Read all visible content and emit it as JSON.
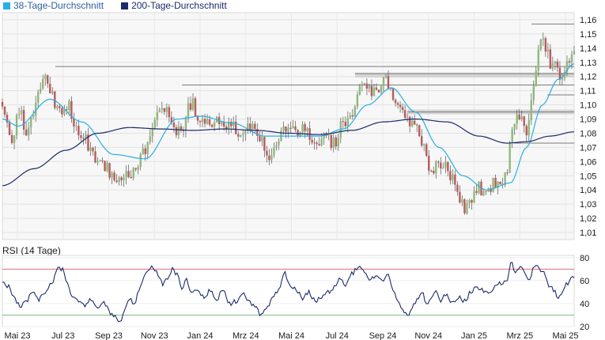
{
  "legend": {
    "ma38_label": "38-Tage-Durchschnitt",
    "ma200_label": "200-Tage-Durchschnitt"
  },
  "colors": {
    "ma38": "#29aee6",
    "ma200": "#1b2a6b",
    "candle_up": "#8fb87a",
    "candle_down": "#b85a5a",
    "candle_wick": "#555555",
    "rsi_line": "#1b2a6b",
    "rsi_upper": "#e07070",
    "rsi_lower": "#80c080"
  },
  "rsi_title": "RSI (14 Tage)",
  "chart_data": [
    {
      "type": "candlestick",
      "title": "",
      "y_ticks": [
        "1,16",
        "1,15",
        "1,14",
        "1,13",
        "1,12",
        "1,11",
        "1,10",
        "1,09",
        "1,08",
        "1,07",
        "1,06",
        "1,05",
        "1,04",
        "1,03",
        "1,02",
        "1,01"
      ],
      "ylim": [
        1.005,
        1.165
      ],
      "x_ticks": [
        "Mai 23",
        "Jul 23",
        "Sep 23",
        "Nov 23",
        "Jan 24",
        "Mrz 24",
        "Mai 24",
        "Jul 24",
        "Sep 24",
        "Nov 24",
        "Jan 25",
        "Mrz 25",
        "Mai 25"
      ],
      "grid": true,
      "close_anchors": [
        [
          0,
          1.102
        ],
        [
          6,
          1.085
        ],
        [
          12,
          1.072
        ],
        [
          18,
          1.088
        ],
        [
          24,
          1.092
        ],
        [
          30,
          1.08
        ],
        [
          36,
          1.09
        ],
        [
          42,
          1.1
        ],
        [
          48,
          1.112
        ],
        [
          54,
          1.125
        ],
        [
          60,
          1.108
        ],
        [
          66,
          1.102
        ],
        [
          72,
          1.098
        ],
        [
          78,
          1.092
        ],
        [
          84,
          1.1
        ],
        [
          90,
          1.088
        ],
        [
          96,
          1.08
        ],
        [
          102,
          1.078
        ],
        [
          108,
          1.072
        ],
        [
          114,
          1.066
        ],
        [
          120,
          1.062
        ],
        [
          126,
          1.058
        ],
        [
          132,
          1.055
        ],
        [
          138,
          1.052
        ],
        [
          144,
          1.05
        ],
        [
          150,
          1.048
        ],
        [
          156,
          1.055
        ],
        [
          162,
          1.052
        ],
        [
          168,
          1.058
        ],
        [
          174,
          1.062
        ],
        [
          180,
          1.068
        ],
        [
          186,
          1.075
        ],
        [
          192,
          1.088
        ],
        [
          198,
          1.096
        ],
        [
          204,
          1.099
        ],
        [
          210,
          1.095
        ],
        [
          216,
          1.085
        ],
        [
          222,
          1.08
        ],
        [
          228,
          1.082
        ],
        [
          234,
          1.098
        ],
        [
          240,
          1.1
        ],
        [
          246,
          1.092
        ],
        [
          252,
          1.09
        ],
        [
          258,
          1.085
        ],
        [
          264,
          1.088
        ],
        [
          270,
          1.092
        ],
        [
          276,
          1.085
        ],
        [
          282,
          1.083
        ],
        [
          288,
          1.087
        ],
        [
          294,
          1.082
        ],
        [
          300,
          1.078
        ],
        [
          306,
          1.08
        ],
        [
          312,
          1.085
        ],
        [
          318,
          1.08
        ],
        [
          324,
          1.076
        ],
        [
          330,
          1.07
        ],
        [
          336,
          1.065
        ],
        [
          342,
          1.072
        ],
        [
          348,
          1.078
        ],
        [
          354,
          1.082
        ],
        [
          360,
          1.086
        ],
        [
          366,
          1.08
        ],
        [
          372,
          1.078
        ],
        [
          378,
          1.084
        ],
        [
          384,
          1.082
        ],
        [
          390,
          1.076
        ],
        [
          396,
          1.07
        ],
        [
          402,
          1.074
        ],
        [
          408,
          1.08
        ],
        [
          414,
          1.072
        ],
        [
          420,
          1.075
        ],
        [
          426,
          1.085
        ],
        [
          432,
          1.082
        ],
        [
          438,
          1.09
        ],
        [
          444,
          1.102
        ],
        [
          450,
          1.112
        ],
        [
          456,
          1.116
        ],
        [
          462,
          1.112
        ],
        [
          468,
          1.108
        ],
        [
          474,
          1.112
        ],
        [
          480,
          1.118
        ],
        [
          486,
          1.114
        ],
        [
          492,
          1.106
        ],
        [
          498,
          1.098
        ],
        [
          504,
          1.092
        ],
        [
          510,
          1.088
        ],
        [
          516,
          1.085
        ],
        [
          522,
          1.082
        ],
        [
          528,
          1.076
        ],
        [
          534,
          1.065
        ],
        [
          540,
          1.052
        ],
        [
          546,
          1.06
        ],
        [
          552,
          1.058
        ],
        [
          558,
          1.055
        ],
        [
          564,
          1.05
        ],
        [
          570,
          1.042
        ],
        [
          576,
          1.035
        ],
        [
          582,
          1.028
        ],
        [
          588,
          1.03
        ],
        [
          594,
          1.038
        ],
        [
          600,
          1.042
        ],
        [
          606,
          1.035
        ],
        [
          612,
          1.038
        ],
        [
          618,
          1.045
        ],
        [
          624,
          1.042
        ],
        [
          630,
          1.04
        ],
        [
          636,
          1.055
        ],
        [
          642,
          1.082
        ],
        [
          648,
          1.092
        ],
        [
          654,
          1.088
        ],
        [
          660,
          1.082
        ],
        [
          666,
          1.1
        ],
        [
          672,
          1.128
        ],
        [
          678,
          1.148
        ],
        [
          684,
          1.14
        ],
        [
          690,
          1.13
        ],
        [
          696,
          1.128
        ],
        [
          702,
          1.118
        ],
        [
          708,
          1.122
        ],
        [
          714,
          1.132
        ],
        [
          720,
          1.14
        ]
      ],
      "series": [
        {
          "name": "38-Tage-Durchschnitt",
          "anchors": [
            [
              0,
              1.09
            ],
            [
              20,
              1.085
            ],
            [
              60,
              1.104
            ],
            [
              100,
              1.088
            ],
            [
              140,
              1.065
            ],
            [
              180,
              1.062
            ],
            [
              220,
              1.09
            ],
            [
              250,
              1.092
            ],
            [
              290,
              1.087
            ],
            [
              330,
              1.078
            ],
            [
              360,
              1.078
            ],
            [
              400,
              1.078
            ],
            [
              430,
              1.083
            ],
            [
              460,
              1.1
            ],
            [
              490,
              1.112
            ],
            [
              520,
              1.095
            ],
            [
              550,
              1.07
            ],
            [
              580,
              1.05
            ],
            [
              610,
              1.04
            ],
            [
              640,
              1.045
            ],
            [
              660,
              1.07
            ],
            [
              680,
              1.1
            ],
            [
              700,
              1.118
            ],
            [
              720,
              1.129
            ]
          ]
        },
        {
          "name": "200-Tage-Durchschnitt",
          "anchors": [
            [
              0,
              1.043
            ],
            [
              40,
              1.055
            ],
            [
              80,
              1.068
            ],
            [
              120,
              1.08
            ],
            [
              160,
              1.084
            ],
            [
              200,
              1.083
            ],
            [
              240,
              1.082
            ],
            [
              280,
              1.083
            ],
            [
              320,
              1.082
            ],
            [
              360,
              1.08
            ],
            [
              400,
              1.079
            ],
            [
              440,
              1.082
            ],
            [
              480,
              1.088
            ],
            [
              520,
              1.09
            ],
            [
              560,
              1.088
            ],
            [
              600,
              1.078
            ],
            [
              635,
              1.073
            ],
            [
              660,
              1.074
            ],
            [
              690,
              1.078
            ],
            [
              720,
              1.081
            ]
          ]
        }
      ],
      "resistance_lines": [
        {
          "level": 1.127,
          "x0": 70,
          "x1": 726
        },
        {
          "level": 1.122,
          "x0": 449,
          "x1": 726
        },
        {
          "level": 1.114,
          "x0": 230,
          "x1": 726
        },
        {
          "level": 1.095,
          "x0": 515,
          "x1": 726
        },
        {
          "level": 1.157,
          "x0": 672,
          "x1": 726
        },
        {
          "level": 1.107,
          "x0": 692,
          "x1": 726
        },
        {
          "level": 1.073,
          "x0": 650,
          "x1": 726
        }
      ],
      "support_bands": [
        {
          "level": 1.121,
          "x0": 449,
          "x1": 726
        },
        {
          "level": 1.095,
          "x0": 515,
          "x1": 726
        }
      ]
    },
    {
      "type": "line",
      "title": "RSI (14 Tage)",
      "y_ticks": [
        "80",
        "60",
        "40",
        "20"
      ],
      "ylim": [
        20,
        82
      ],
      "overbought": 70,
      "oversold": 30,
      "series": [
        {
          "name": "RSI",
          "anchors": [
            [
              0,
              60
            ],
            [
              8,
              55
            ],
            [
              14,
              45
            ],
            [
              22,
              38
            ],
            [
              30,
              42
            ],
            [
              38,
              50
            ],
            [
              46,
              44
            ],
            [
              54,
              48
            ],
            [
              62,
              58
            ],
            [
              70,
              72
            ],
            [
              76,
              70
            ],
            [
              82,
              58
            ],
            [
              88,
              46
            ],
            [
              96,
              42
            ],
            [
              104,
              38
            ],
            [
              112,
              44
            ],
            [
              120,
              36
            ],
            [
              128,
              40
            ],
            [
              136,
              32
            ],
            [
              142,
              28
            ],
            [
              148,
              24
            ],
            [
              154,
              35
            ],
            [
              160,
              45
            ],
            [
              166,
              40
            ],
            [
              172,
              52
            ],
            [
              178,
              62
            ],
            [
              184,
              70
            ],
            [
              190,
              72
            ],
            [
              196,
              66
            ],
            [
              202,
              56
            ],
            [
              208,
              62
            ],
            [
              214,
              70
            ],
            [
              220,
              66
            ],
            [
              226,
              54
            ],
            [
              232,
              60
            ],
            [
              238,
              48
            ],
            [
              246,
              52
            ],
            [
              254,
              46
            ],
            [
              262,
              52
            ],
            [
              270,
              44
            ],
            [
              278,
              52
            ],
            [
              286,
              40
            ],
            [
              294,
              42
            ],
            [
              302,
              50
            ],
            [
              310,
              42
            ],
            [
              318,
              38
            ],
            [
              326,
              30
            ],
            [
              332,
              36
            ],
            [
              340,
              44
            ],
            [
              348,
              52
            ],
            [
              356,
              66
            ],
            [
              362,
              56
            ],
            [
              370,
              52
            ],
            [
              378,
              44
            ],
            [
              386,
              50
            ],
            [
              394,
              42
            ],
            [
              402,
              46
            ],
            [
              410,
              50
            ],
            [
              418,
              54
            ],
            [
              426,
              62
            ],
            [
              432,
              56
            ],
            [
              440,
              66
            ],
            [
              448,
              72
            ],
            [
              456,
              68
            ],
            [
              462,
              60
            ],
            [
              470,
              64
            ],
            [
              478,
              60
            ],
            [
              486,
              66
            ],
            [
              492,
              52
            ],
            [
              498,
              44
            ],
            [
              504,
              34
            ],
            [
              510,
              30
            ],
            [
              516,
              36
            ],
            [
              522,
              44
            ],
            [
              528,
              50
            ],
            [
              534,
              40
            ],
            [
              540,
              46
            ],
            [
              546,
              52
            ],
            [
              552,
              42
            ],
            [
              558,
              48
            ],
            [
              566,
              40
            ],
            [
              574,
              46
            ],
            [
              582,
              42
            ],
            [
              590,
              50
            ],
            [
              596,
              54
            ],
            [
              604,
              52
            ],
            [
              612,
              48
            ],
            [
              620,
              54
            ],
            [
              628,
              58
            ],
            [
              636,
              62
            ],
            [
              640,
              76
            ],
            [
              646,
              68
            ],
            [
              652,
              72
            ],
            [
              658,
              66
            ],
            [
              664,
              60
            ],
            [
              670,
              74
            ],
            [
              676,
              70
            ],
            [
              682,
              66
            ],
            [
              688,
              56
            ],
            [
              694,
              52
            ],
            [
              700,
              44
            ],
            [
              706,
              52
            ],
            [
              712,
              58
            ],
            [
              718,
              62
            ]
          ]
        }
      ]
    }
  ]
}
